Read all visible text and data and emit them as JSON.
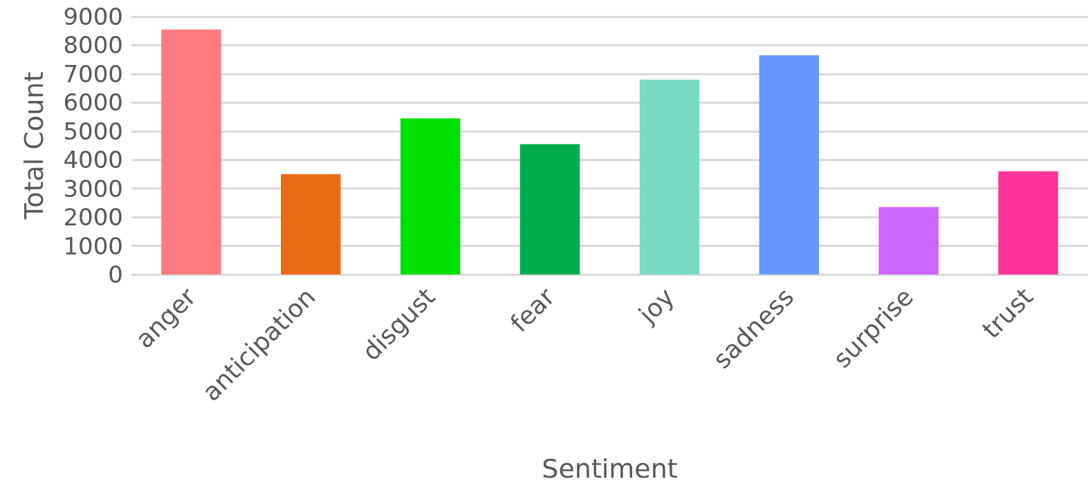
{
  "chart_data": {
    "type": "bar",
    "xlabel": "Sentiment",
    "ylabel": "Total Count",
    "categories": [
      "anger",
      "anticipation",
      "disgust",
      "fear",
      "joy",
      "sadness",
      "surprise",
      "trust"
    ],
    "values": [
      8550,
      3500,
      5450,
      4550,
      6800,
      7650,
      2350,
      3600
    ],
    "colors": [
      "#ff7b80",
      "#e96b17",
      "#00e000",
      "#00ad4f",
      "#77dbc4",
      "#6699ff",
      "#cc66ff",
      "#ff3399"
    ],
    "ylim": [
      0,
      9000
    ],
    "yticks": [
      0,
      1000,
      2000,
      3000,
      4000,
      5000,
      6000,
      7000,
      8000,
      9000
    ],
    "grid": "y"
  }
}
